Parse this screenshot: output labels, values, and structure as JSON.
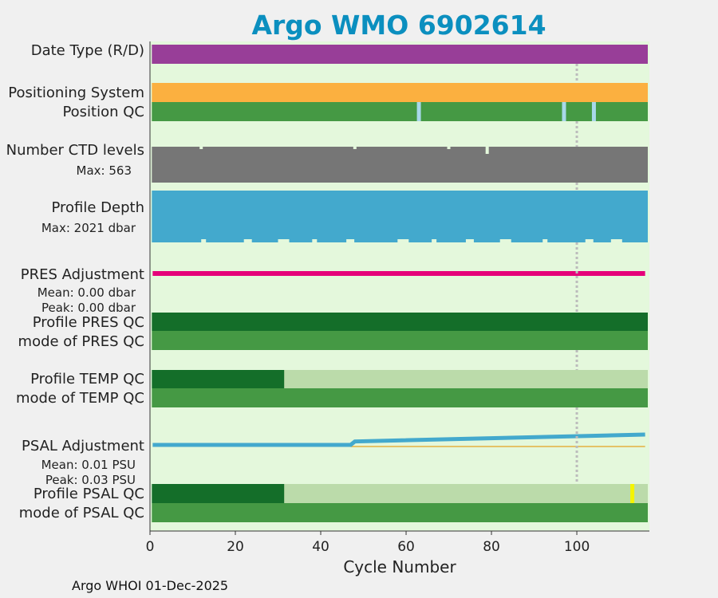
{
  "title": "Argo WMO 6902614",
  "footer": "Argo WHOI 01-Dec-2025",
  "chart_data": {
    "type": "bar",
    "title": "Argo WMO 6902614",
    "xlabel": "Cycle Number",
    "xlim": [
      0,
      117
    ],
    "xticks": [
      0,
      20,
      40,
      60,
      80,
      100
    ],
    "reference_line_x": 100,
    "colors": {
      "background": "#e4f8dc",
      "date_type": "#983e98",
      "positioning": "#fbb040",
      "qc_good": "#459944",
      "qc_dark": "#146e29",
      "qc_light": "#bbdbaa",
      "qc_gap": "#a8d8ea",
      "ctd": "#767676",
      "depth": "#43a9cd",
      "pres_adj": "#e5007a",
      "psal_adj": "#43a9cd",
      "psal_ref": "#e4b040",
      "flag_yellow": "#f4f400"
    },
    "rows": [
      {
        "label": "Date Type (R/D)",
        "color": "date_type",
        "ranges": [
          [
            1,
            117
          ]
        ]
      },
      {
        "label": "Positioning System",
        "color": "positioning",
        "ranges": [
          [
            1,
            117
          ]
        ]
      },
      {
        "label": "Position QC",
        "color": "qc_good",
        "ranges": [
          [
            1,
            117
          ]
        ],
        "gaps": [
          63,
          97,
          104
        ]
      },
      {
        "label": "Number CTD levels",
        "sub": "Max: 563",
        "color": "ctd",
        "ranges": [
          [
            1,
            117
          ]
        ],
        "notches": [
          12,
          48,
          70,
          79
        ]
      },
      {
        "label": "Profile Depth",
        "sub": "Max: 2021 dbar",
        "sub_color": "#1396c2",
        "color": "depth",
        "ranges": [
          [
            1,
            117
          ]
        ]
      },
      {
        "label": "PRES Adjustment",
        "sub": "Mean: 0.00 dbar",
        "sub2": "Peak: 0.00 dbar",
        "sub_color": "#e5007a"
      },
      {
        "label": "Profile PRES QC",
        "color": "qc_dark",
        "ranges": [
          [
            1,
            117
          ]
        ]
      },
      {
        "label": "mode of PRES QC",
        "color": "qc_good",
        "ranges": [
          [
            1,
            117
          ]
        ]
      },
      {
        "label": "Profile TEMP QC",
        "segments": [
          {
            "range": [
              1,
              32
            ],
            "color": "qc_dark"
          },
          {
            "range": [
              32,
              117
            ],
            "color": "qc_light"
          }
        ]
      },
      {
        "label": "mode of TEMP QC",
        "color": "qc_good",
        "ranges": [
          [
            1,
            117
          ]
        ]
      },
      {
        "label": "PSAL Adjustment",
        "sub": "Mean: 0.01 PSU",
        "sub2": "Peak: 0.03 PSU",
        "sub_color": "#1396c2"
      },
      {
        "label": "Profile PSAL QC",
        "segments": [
          {
            "range": [
              1,
              32
            ],
            "color": "qc_dark"
          },
          {
            "range": [
              32,
              117
            ],
            "color": "qc_light"
          }
        ],
        "flag_at": 113
      },
      {
        "label": "mode of PSAL QC",
        "color": "qc_good",
        "ranges": [
          [
            1,
            117
          ]
        ]
      }
    ],
    "pres_adjustment": {
      "x": [
        1,
        116
      ],
      "y": [
        0.0,
        0.0
      ]
    },
    "psal_adjustment": {
      "x": [
        1,
        47,
        48,
        116
      ],
      "y": [
        0.0,
        0.0,
        0.01,
        0.03
      ]
    }
  }
}
